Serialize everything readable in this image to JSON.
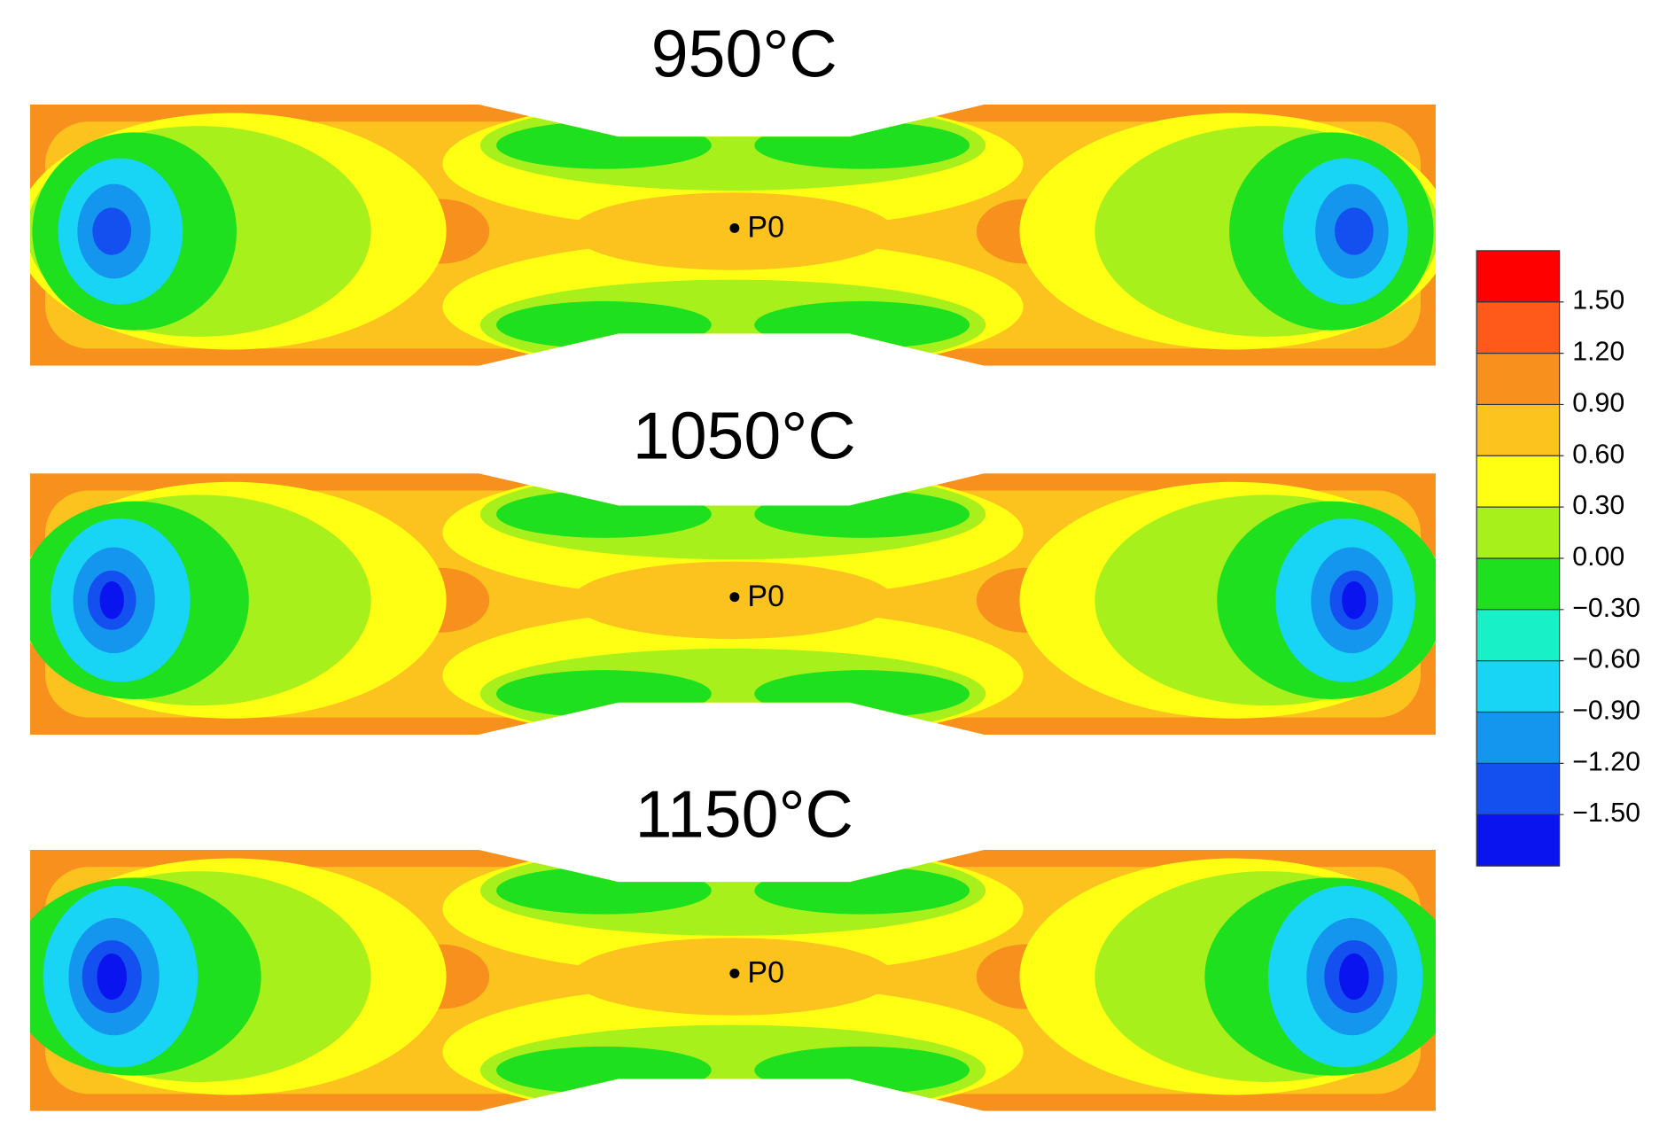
{
  "panels": [
    {
      "title": "950°C",
      "point_label": "P0"
    },
    {
      "title": "1050°C",
      "point_label": "P0"
    },
    {
      "title": "1150°C",
      "point_label": "P0"
    }
  ],
  "colorbar": {
    "lim": [
      -1.8,
      1.8
    ],
    "ticks": [
      {
        "value": 1.5,
        "label": "1.50"
      },
      {
        "value": 1.2,
        "label": "1.20"
      },
      {
        "value": 0.9,
        "label": "0.90"
      },
      {
        "value": 0.6,
        "label": "0.60"
      },
      {
        "value": 0.3,
        "label": "0.30"
      },
      {
        "value": 0,
        "label": "0.00"
      },
      {
        "value": -0.3,
        "label": "−0.30"
      },
      {
        "value": -0.6,
        "label": "−0.60"
      },
      {
        "value": -0.9,
        "label": "−0.90"
      },
      {
        "value": -1.2,
        "label": "−1.20"
      },
      {
        "value": -1.5,
        "label": "−1.50"
      }
    ],
    "colors": [
      "#ff0000",
      "#ff5a1a",
      "#f7901c",
      "#fcc21e",
      "#ffff14",
      "#a8f01c",
      "#1ee01e",
      "#18f0c8",
      "#18d4f5",
      "#1496ee",
      "#1450f0",
      "#0a14ee"
    ]
  }
}
